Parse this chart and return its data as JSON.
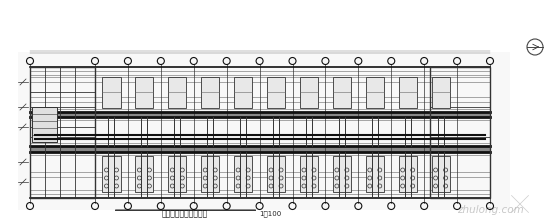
{
  "bg_color": "#ffffff",
  "line_color": "#666666",
  "thick_line_color": "#111111",
  "med_line_color": "#333333",
  "fig_width": 5.6,
  "fig_height": 2.22,
  "dpi": 100,
  "num_bays": 13,
  "title_text": "一层给水消火栏平面图",
  "scale_text": "1：100",
  "watermark": "zhulong.com"
}
